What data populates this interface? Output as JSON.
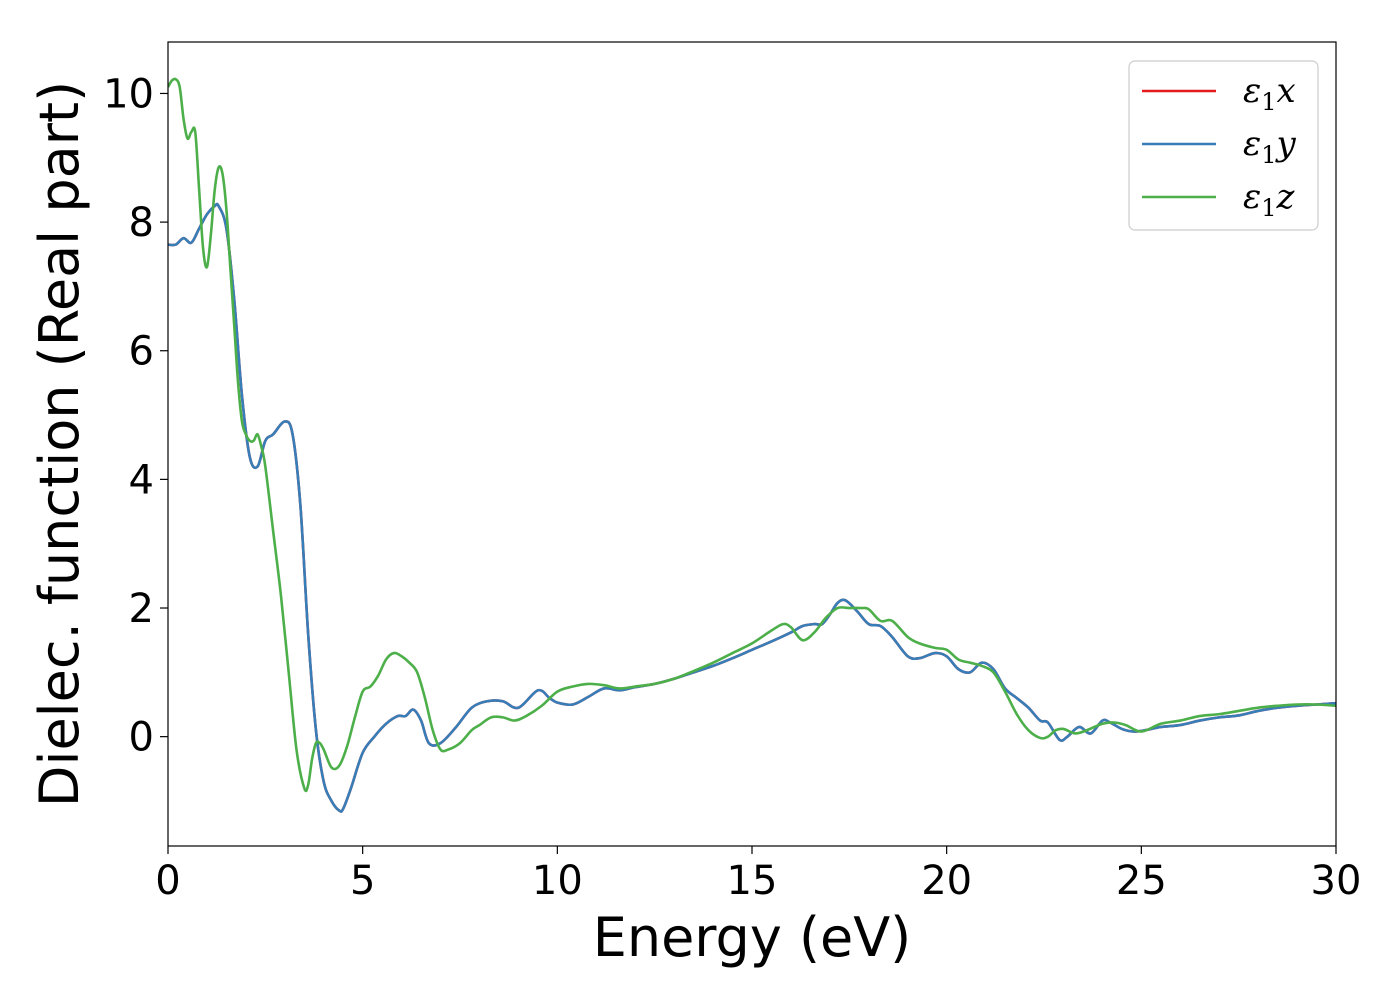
{
  "chart_data": {
    "type": "line",
    "title": "",
    "xlabel": "Energy (eV)",
    "ylabel": "Dielec. function (Real part)",
    "xlim": [
      0,
      30
    ],
    "ylim": [
      -1.7,
      10.8
    ],
    "xticks": [
      0,
      5,
      10,
      15,
      20,
      25,
      30
    ],
    "xtick_labels": [
      "0",
      "5",
      "10",
      "15",
      "20",
      "25",
      "30"
    ],
    "yticks": [
      0,
      2,
      4,
      6,
      8,
      10
    ],
    "ytick_labels": [
      "0",
      "2",
      "4",
      "6",
      "8",
      "10"
    ],
    "grid": false,
    "legend_position": "top-right",
    "colors": {
      "x": "#e41a1c",
      "y": "#377eb8",
      "z": "#4daf4a"
    },
    "series": [
      {
        "name": "ε1x",
        "symbol": "ε",
        "subscript": "1",
        "component": "x",
        "color": "#e41a1c",
        "x": [
          0,
          0.2,
          0.4,
          0.6,
          0.8,
          1.0,
          1.2,
          1.3,
          1.5,
          1.7,
          1.9,
          2.1,
          2.3,
          2.5,
          2.7,
          3.0,
          3.2,
          3.4,
          3.6,
          3.8,
          4.0,
          4.2,
          4.4,
          4.5,
          4.7,
          5.0,
          5.3,
          5.6,
          5.9,
          6.1,
          6.3,
          6.5,
          6.7,
          7.0,
          7.4,
          7.8,
          8.2,
          8.6,
          9.0,
          9.5,
          9.8,
          10.0,
          10.4,
          10.8,
          11.2,
          11.6,
          12.0,
          12.5,
          13.0,
          13.5,
          14.0,
          14.5,
          15.0,
          15.5,
          16.0,
          16.3,
          16.6,
          16.8,
          17.0,
          17.2,
          17.4,
          17.7,
          18.0,
          18.3,
          18.6,
          19.0,
          19.3,
          19.7,
          20.0,
          20.3,
          20.6,
          20.9,
          21.2,
          21.5,
          21.8,
          22.1,
          22.4,
          22.6,
          22.9,
          23.1,
          23.4,
          23.7,
          24.0,
          24.2,
          24.5,
          24.8,
          25.1,
          25.5,
          26.0,
          26.5,
          27.0,
          27.5,
          28.0,
          28.5,
          29.0,
          29.5,
          30.0
        ],
        "y": [
          7.65,
          7.65,
          7.75,
          7.68,
          7.9,
          8.12,
          8.25,
          8.25,
          7.9,
          6.8,
          5.3,
          4.35,
          4.2,
          4.6,
          4.7,
          4.9,
          4.7,
          3.6,
          1.6,
          0.1,
          -0.7,
          -1.0,
          -1.15,
          -1.12,
          -0.8,
          -0.25,
          0.0,
          0.2,
          0.32,
          0.32,
          0.42,
          0.25,
          -0.1,
          -0.1,
          0.15,
          0.45,
          0.55,
          0.55,
          0.45,
          0.72,
          0.6,
          0.53,
          0.5,
          0.62,
          0.75,
          0.72,
          0.77,
          0.82,
          0.9,
          1.0,
          1.1,
          1.22,
          1.35,
          1.48,
          1.62,
          1.72,
          1.75,
          1.75,
          1.9,
          2.08,
          2.12,
          1.95,
          1.75,
          1.72,
          1.55,
          1.25,
          1.22,
          1.3,
          1.25,
          1.05,
          1.0,
          1.15,
          1.05,
          0.75,
          0.6,
          0.45,
          0.25,
          0.22,
          -0.05,
          0.0,
          0.15,
          0.05,
          0.25,
          0.22,
          0.12,
          0.08,
          0.1,
          0.15,
          0.18,
          0.25,
          0.3,
          0.33,
          0.4,
          0.45,
          0.48,
          0.5,
          0.52
        ]
      },
      {
        "name": "ε1y",
        "symbol": "ε",
        "subscript": "1",
        "component": "y",
        "color": "#377eb8",
        "x": [
          0,
          0.2,
          0.4,
          0.6,
          0.8,
          1.0,
          1.2,
          1.3,
          1.5,
          1.7,
          1.9,
          2.1,
          2.3,
          2.5,
          2.7,
          3.0,
          3.2,
          3.4,
          3.6,
          3.8,
          4.0,
          4.2,
          4.4,
          4.5,
          4.7,
          5.0,
          5.3,
          5.6,
          5.9,
          6.1,
          6.3,
          6.5,
          6.7,
          7.0,
          7.4,
          7.8,
          8.2,
          8.6,
          9.0,
          9.5,
          9.8,
          10.0,
          10.4,
          10.8,
          11.2,
          11.6,
          12.0,
          12.5,
          13.0,
          13.5,
          14.0,
          14.5,
          15.0,
          15.5,
          16.0,
          16.3,
          16.6,
          16.8,
          17.0,
          17.2,
          17.4,
          17.7,
          18.0,
          18.3,
          18.6,
          19.0,
          19.3,
          19.7,
          20.0,
          20.3,
          20.6,
          20.9,
          21.2,
          21.5,
          21.8,
          22.1,
          22.4,
          22.6,
          22.9,
          23.1,
          23.4,
          23.7,
          24.0,
          24.2,
          24.5,
          24.8,
          25.1,
          25.5,
          26.0,
          26.5,
          27.0,
          27.5,
          28.0,
          28.5,
          29.0,
          29.5,
          30.0
        ],
        "y": [
          7.65,
          7.65,
          7.75,
          7.68,
          7.9,
          8.12,
          8.25,
          8.25,
          7.9,
          6.8,
          5.3,
          4.35,
          4.2,
          4.6,
          4.7,
          4.9,
          4.7,
          3.6,
          1.6,
          0.1,
          -0.7,
          -1.0,
          -1.15,
          -1.12,
          -0.8,
          -0.25,
          0.0,
          0.2,
          0.32,
          0.32,
          0.42,
          0.25,
          -0.1,
          -0.1,
          0.15,
          0.45,
          0.55,
          0.55,
          0.45,
          0.72,
          0.6,
          0.53,
          0.5,
          0.62,
          0.75,
          0.72,
          0.77,
          0.82,
          0.9,
          1.0,
          1.1,
          1.22,
          1.35,
          1.48,
          1.62,
          1.72,
          1.75,
          1.75,
          1.9,
          2.08,
          2.12,
          1.95,
          1.75,
          1.72,
          1.55,
          1.25,
          1.22,
          1.3,
          1.25,
          1.05,
          1.0,
          1.15,
          1.05,
          0.75,
          0.6,
          0.45,
          0.25,
          0.22,
          -0.05,
          0.0,
          0.15,
          0.05,
          0.25,
          0.22,
          0.12,
          0.08,
          0.1,
          0.15,
          0.18,
          0.25,
          0.3,
          0.33,
          0.4,
          0.45,
          0.48,
          0.5,
          0.52
        ]
      },
      {
        "name": "ε1z",
        "symbol": "ε",
        "subscript": "1",
        "component": "z",
        "color": "#4daf4a",
        "x": [
          0,
          0.1,
          0.2,
          0.3,
          0.4,
          0.5,
          0.6,
          0.7,
          0.8,
          0.9,
          1.0,
          1.1,
          1.2,
          1.3,
          1.4,
          1.5,
          1.6,
          1.7,
          1.8,
          1.9,
          2.0,
          2.1,
          2.2,
          2.3,
          2.4,
          2.5,
          2.7,
          2.9,
          3.1,
          3.3,
          3.5,
          3.6,
          3.7,
          3.8,
          3.9,
          4.0,
          4.2,
          4.4,
          4.6,
          4.8,
          5.0,
          5.2,
          5.4,
          5.6,
          5.8,
          6.0,
          6.2,
          6.4,
          6.6,
          6.8,
          7.0,
          7.2,
          7.5,
          7.8,
          8.0,
          8.3,
          8.6,
          8.9,
          9.2,
          9.6,
          10.0,
          10.4,
          10.8,
          11.2,
          11.6,
          12.0,
          12.5,
          13.0,
          13.5,
          14.0,
          14.5,
          15.0,
          15.5,
          15.8,
          16.0,
          16.3,
          16.6,
          16.9,
          17.2,
          17.5,
          17.8,
          18.0,
          18.3,
          18.6,
          19.0,
          19.3,
          19.7,
          20.0,
          20.3,
          20.6,
          20.9,
          21.2,
          21.5,
          21.8,
          22.1,
          22.4,
          22.6,
          22.8,
          23.0,
          23.3,
          23.6,
          24.0,
          24.3,
          24.6,
          25.0,
          25.5,
          26.0,
          26.5,
          27.0,
          27.5,
          28.0,
          28.5,
          29.0,
          29.5,
          30.0
        ],
        "y": [
          10.1,
          10.2,
          10.22,
          10.1,
          9.6,
          9.3,
          9.4,
          9.4,
          8.5,
          7.6,
          7.3,
          7.8,
          8.5,
          8.85,
          8.75,
          8.2,
          7.3,
          6.4,
          5.5,
          4.9,
          4.7,
          4.6,
          4.6,
          4.7,
          4.5,
          4.2,
          3.2,
          2.2,
          1.0,
          -0.2,
          -0.8,
          -0.75,
          -0.35,
          -0.1,
          -0.1,
          -0.2,
          -0.48,
          -0.45,
          -0.15,
          0.3,
          0.7,
          0.78,
          0.95,
          1.2,
          1.3,
          1.25,
          1.15,
          1.0,
          0.6,
          0.1,
          -0.2,
          -0.2,
          -0.1,
          0.1,
          0.18,
          0.3,
          0.3,
          0.25,
          0.32,
          0.48,
          0.7,
          0.78,
          0.82,
          0.8,
          0.75,
          0.78,
          0.82,
          0.9,
          1.02,
          1.15,
          1.3,
          1.45,
          1.65,
          1.75,
          1.7,
          1.5,
          1.62,
          1.85,
          2.0,
          2.0,
          2.0,
          1.98,
          1.8,
          1.8,
          1.55,
          1.45,
          1.38,
          1.35,
          1.2,
          1.15,
          1.1,
          1.0,
          0.7,
          0.35,
          0.1,
          -0.02,
          0.0,
          0.1,
          0.12,
          0.05,
          0.1,
          0.2,
          0.22,
          0.18,
          0.08,
          0.2,
          0.25,
          0.32,
          0.35,
          0.4,
          0.45,
          0.48,
          0.5,
          0.5,
          0.48
        ]
      }
    ]
  }
}
